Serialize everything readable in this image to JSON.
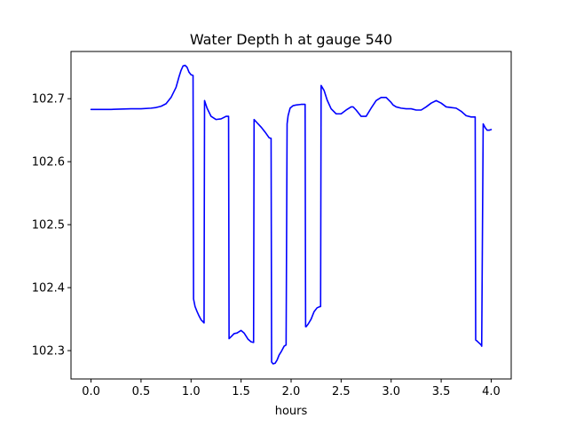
{
  "chart_data": {
    "type": "line",
    "title": "Water Depth h at gauge 540",
    "xlabel": "hours",
    "ylabel": "",
    "xlim": [
      -0.2,
      4.2
    ],
    "ylim": [
      102.255,
      102.775
    ],
    "xticks": [
      0.0,
      0.5,
      1.0,
      1.5,
      2.0,
      2.5,
      3.0,
      3.5,
      4.0
    ],
    "xtick_labels": [
      "0.0",
      "0.5",
      "1.0",
      "1.5",
      "2.0",
      "2.5",
      "3.0",
      "3.5",
      "4.0"
    ],
    "yticks": [
      102.3,
      102.4,
      102.5,
      102.6,
      102.7
    ],
    "ytick_labels": [
      "102.3",
      "102.4",
      "102.5",
      "102.6",
      "102.7"
    ],
    "grid": false,
    "legend": "none",
    "series": [
      {
        "color": "#0000ff",
        "x": [
          0.0,
          0.2,
          0.4,
          0.5,
          0.6,
          0.65,
          0.7,
          0.75,
          0.8,
          0.85,
          0.88,
          0.9,
          0.92,
          0.94,
          0.96,
          0.98,
          1.0,
          1.02,
          1.025,
          1.04,
          1.06,
          1.08,
          1.1,
          1.13,
          1.135,
          1.16,
          1.2,
          1.25,
          1.3,
          1.35,
          1.375,
          1.38,
          1.4,
          1.43,
          1.46,
          1.5,
          1.53,
          1.57,
          1.6,
          1.625,
          1.63,
          1.67,
          1.7,
          1.74,
          1.78,
          1.8,
          1.805,
          1.82,
          1.84,
          1.86,
          1.88,
          1.9,
          1.93,
          1.95,
          1.96,
          1.97,
          1.99,
          2.02,
          2.05,
          2.1,
          2.14,
          2.145,
          2.15,
          2.17,
          2.2,
          2.23,
          2.26,
          2.29,
          2.295,
          2.3,
          2.33,
          2.36,
          2.4,
          2.45,
          2.5,
          2.55,
          2.6,
          2.62,
          2.65,
          2.7,
          2.75,
          2.8,
          2.85,
          2.9,
          2.95,
          3.0,
          3.02,
          3.05,
          3.1,
          3.15,
          3.2,
          3.25,
          3.3,
          3.35,
          3.4,
          3.45,
          3.5,
          3.55,
          3.6,
          3.65,
          3.7,
          3.75,
          3.8,
          3.84,
          3.845,
          3.86,
          3.88,
          3.9,
          3.905,
          3.92,
          3.94,
          3.96,
          3.98,
          4.0
        ],
        "y": [
          102.683,
          102.683,
          102.684,
          102.684,
          102.685,
          102.686,
          102.688,
          102.692,
          102.702,
          102.718,
          102.735,
          102.745,
          102.752,
          102.753,
          102.75,
          102.742,
          102.738,
          102.737,
          102.382,
          102.37,
          102.362,
          102.355,
          102.349,
          102.344,
          102.697,
          102.685,
          102.672,
          102.667,
          102.668,
          102.672,
          102.672,
          102.319,
          102.322,
          102.327,
          102.328,
          102.332,
          102.328,
          102.318,
          102.314,
          102.313,
          102.667,
          102.66,
          102.655,
          102.647,
          102.638,
          102.637,
          102.282,
          102.279,
          102.28,
          102.285,
          102.293,
          102.298,
          102.307,
          102.309,
          102.66,
          102.673,
          102.685,
          102.689,
          102.69,
          102.691,
          102.691,
          102.338,
          102.338,
          102.342,
          102.35,
          102.362,
          102.368,
          102.37,
          102.37,
          102.721,
          102.713,
          102.698,
          102.684,
          102.676,
          102.676,
          102.682,
          102.687,
          102.687,
          102.682,
          102.672,
          102.672,
          102.685,
          102.697,
          102.702,
          102.702,
          102.694,
          102.69,
          102.687,
          102.685,
          102.684,
          102.684,
          102.682,
          102.682,
          102.687,
          102.693,
          102.697,
          102.693,
          102.687,
          102.686,
          102.685,
          102.68,
          102.673,
          102.671,
          102.671,
          102.317,
          102.315,
          102.312,
          102.309,
          102.307,
          102.66,
          102.654,
          102.65,
          102.65,
          102.651
        ]
      }
    ]
  }
}
